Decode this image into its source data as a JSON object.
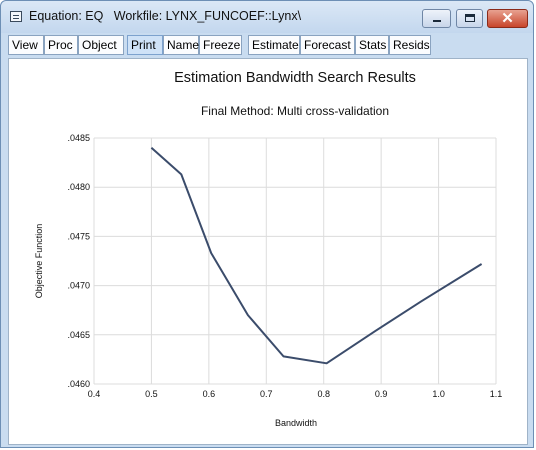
{
  "window": {
    "title": "Equation: EQ   Workfile: LYNX_FUNCOEF::Lynx\\",
    "close_glyph": "✕",
    "colors": {
      "title_bar": "#c9dcf0",
      "close_button": "#c8452b",
      "line": "#3b4c6b"
    }
  },
  "toolbar": {
    "buttons": [
      {
        "label": "View"
      },
      {
        "label": "Proc"
      },
      {
        "label": "Object"
      },
      {
        "label": "Print",
        "active": true
      },
      {
        "label": "Name"
      },
      {
        "label": "Freeze"
      },
      {
        "label": "Estimate"
      },
      {
        "label": "Forecast"
      },
      {
        "label": "Stats"
      },
      {
        "label": "Resids"
      }
    ]
  },
  "chart_data": {
    "type": "line",
    "title": "Estimation Bandwidth Search Results",
    "subtitle": "Final Method: Multi cross-validation",
    "xlabel": "Bandwidth",
    "ylabel": "Objective Function",
    "xlim": [
      0.4,
      1.1
    ],
    "ylim": [
      0.046,
      0.0485
    ],
    "x_ticks": [
      "0.4",
      "0.5",
      "0.6",
      "0.7",
      "0.8",
      "0.9",
      "1.0",
      "1.1"
    ],
    "x_tick_values": [
      0.4,
      0.5,
      0.6,
      0.7,
      0.8,
      0.9,
      1.0,
      1.1
    ],
    "y_ticks": [
      ".0460",
      ".0465",
      ".0470",
      ".0475",
      ".0480",
      ".0485"
    ],
    "y_tick_values": [
      0.046,
      0.0465,
      0.047,
      0.0475,
      0.048,
      0.0485
    ],
    "grid": true,
    "series": [
      {
        "x": [
          0.5,
          0.552,
          0.604,
          0.668,
          0.73,
          0.805,
          0.89,
          0.97,
          1.075
        ],
        "y": [
          0.0484,
          0.04813,
          0.04733,
          0.0467,
          0.04628,
          0.04621,
          0.04654,
          0.04684,
          0.04722
        ]
      }
    ]
  }
}
